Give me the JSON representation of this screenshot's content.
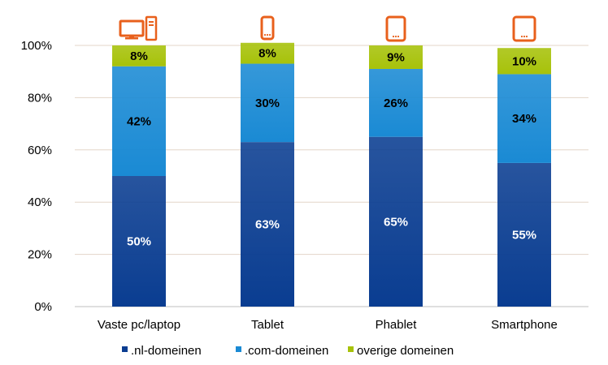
{
  "chart_data": {
    "type": "bar",
    "stacked": true,
    "categories": [
      "Vaste pc/laptop",
      "Tablet",
      "Phablet",
      "Smartphone"
    ],
    "icons": [
      "desktop-pc-icon",
      "tablet-icon",
      "phablet-icon",
      "smartphone-icon"
    ],
    "series": [
      {
        "name": ".nl-domeinen",
        "values": [
          50,
          63,
          65,
          55
        ],
        "labels": [
          "50%",
          "63%",
          "65%",
          "55%"
        ],
        "color": "#0a3d91",
        "label_color": "#ffffff"
      },
      {
        "name": ".com-domeinen",
        "values": [
          42,
          30,
          26,
          34
        ],
        "labels": [
          "42%",
          "30%",
          "26%",
          "34%"
        ],
        "color": "#1a8ad4",
        "label_color": "#000000"
      },
      {
        "name": "overige domeinen",
        "values": [
          8,
          8,
          9,
          10
        ],
        "labels": [
          "8%",
          "8%",
          "9%",
          "10%"
        ],
        "color": "#a7c20a",
        "label_color": "#000000"
      }
    ],
    "ylim": [
      0,
      100
    ],
    "yticks": [
      "0%",
      "20%",
      "40%",
      "60%",
      "80%",
      "100%"
    ],
    "grid": true,
    "legend": "bottom",
    "icon_color": "#e8601c"
  }
}
